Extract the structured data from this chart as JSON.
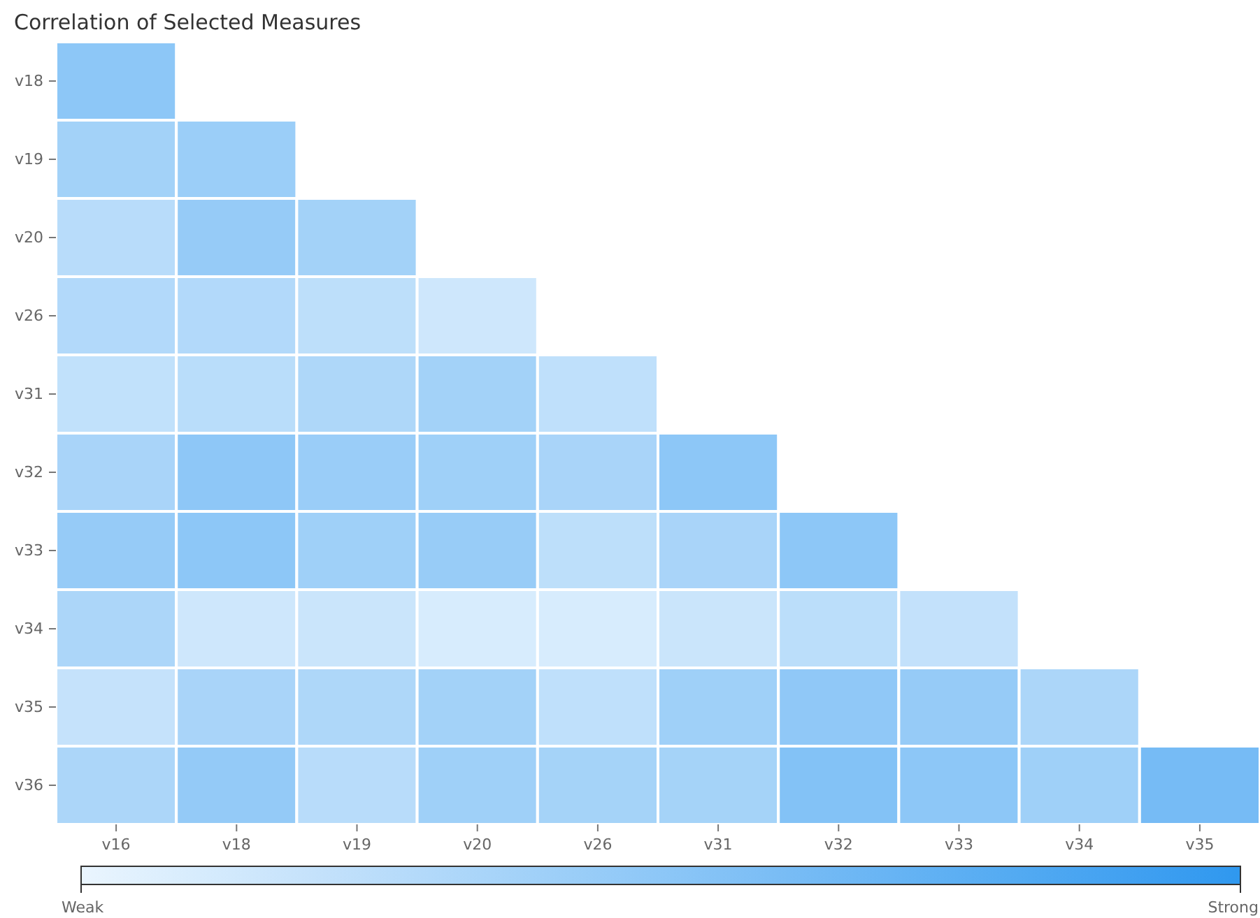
{
  "chart_data": {
    "type": "heatmap",
    "title": "Correlation of Selected Measures",
    "categories": [
      "v16",
      "v18",
      "v19",
      "v20",
      "v26",
      "v31",
      "v32",
      "v33",
      "v34",
      "v35"
    ],
    "y_categories": [
      "v18",
      "v19",
      "v20",
      "v26",
      "v31",
      "v32",
      "v33",
      "v34",
      "v35",
      "v36"
    ],
    "cells": [
      [
        0.5,
        null,
        null,
        null,
        null,
        null,
        null,
        null,
        null,
        null
      ],
      [
        0.38,
        0.42,
        null,
        null,
        null,
        null,
        null,
        null,
        null,
        null
      ],
      [
        0.27,
        0.45,
        0.38,
        null,
        null,
        null,
        null,
        null,
        null,
        null
      ],
      [
        0.3,
        0.3,
        0.24,
        0.15,
        null,
        null,
        null,
        null,
        null,
        null
      ],
      [
        0.22,
        0.26,
        0.32,
        0.38,
        0.23,
        null,
        null,
        null,
        null,
        null
      ],
      [
        0.35,
        0.49,
        0.43,
        0.4,
        0.35,
        0.5,
        null,
        null,
        null,
        null
      ],
      [
        0.45,
        0.5,
        0.4,
        0.44,
        0.24,
        0.35,
        0.5,
        null,
        null,
        null
      ],
      [
        0.33,
        0.15,
        0.17,
        0.1,
        0.1,
        0.17,
        0.25,
        0.21,
        null,
        null
      ],
      [
        0.2,
        0.35,
        0.32,
        0.38,
        0.23,
        0.4,
        0.48,
        0.45,
        0.33,
        null
      ],
      [
        0.33,
        0.46,
        0.27,
        0.4,
        0.37,
        0.37,
        0.55,
        0.5,
        0.4,
        0.62
      ]
    ],
    "clim": [
      0,
      1
    ],
    "cticks": [
      {
        "value": 0,
        "label": "Weak"
      },
      {
        "value": 1,
        "label": "Strong"
      }
    ]
  }
}
